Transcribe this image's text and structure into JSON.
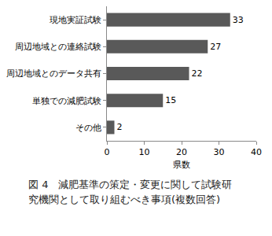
{
  "chart_data": {
    "type": "bar",
    "orientation": "horizontal",
    "title": "図 4　減肥基準の策定・変更に関して試験研究機関として取り組むべき事項(複数回答)",
    "x_label": "県数",
    "categories": [
      "現地実証試験",
      "周辺地域との連絡試験",
      "周辺地域とのデータ共有",
      "単独での減肥試験",
      "その他"
    ],
    "values": [
      33,
      27,
      22,
      15,
      2
    ],
    "color": "#595959",
    "xlim": [
      0,
      40
    ],
    "xticks": [
      0,
      10,
      20,
      30,
      40
    ],
    "grid": false,
    "data_labels": true
  }
}
